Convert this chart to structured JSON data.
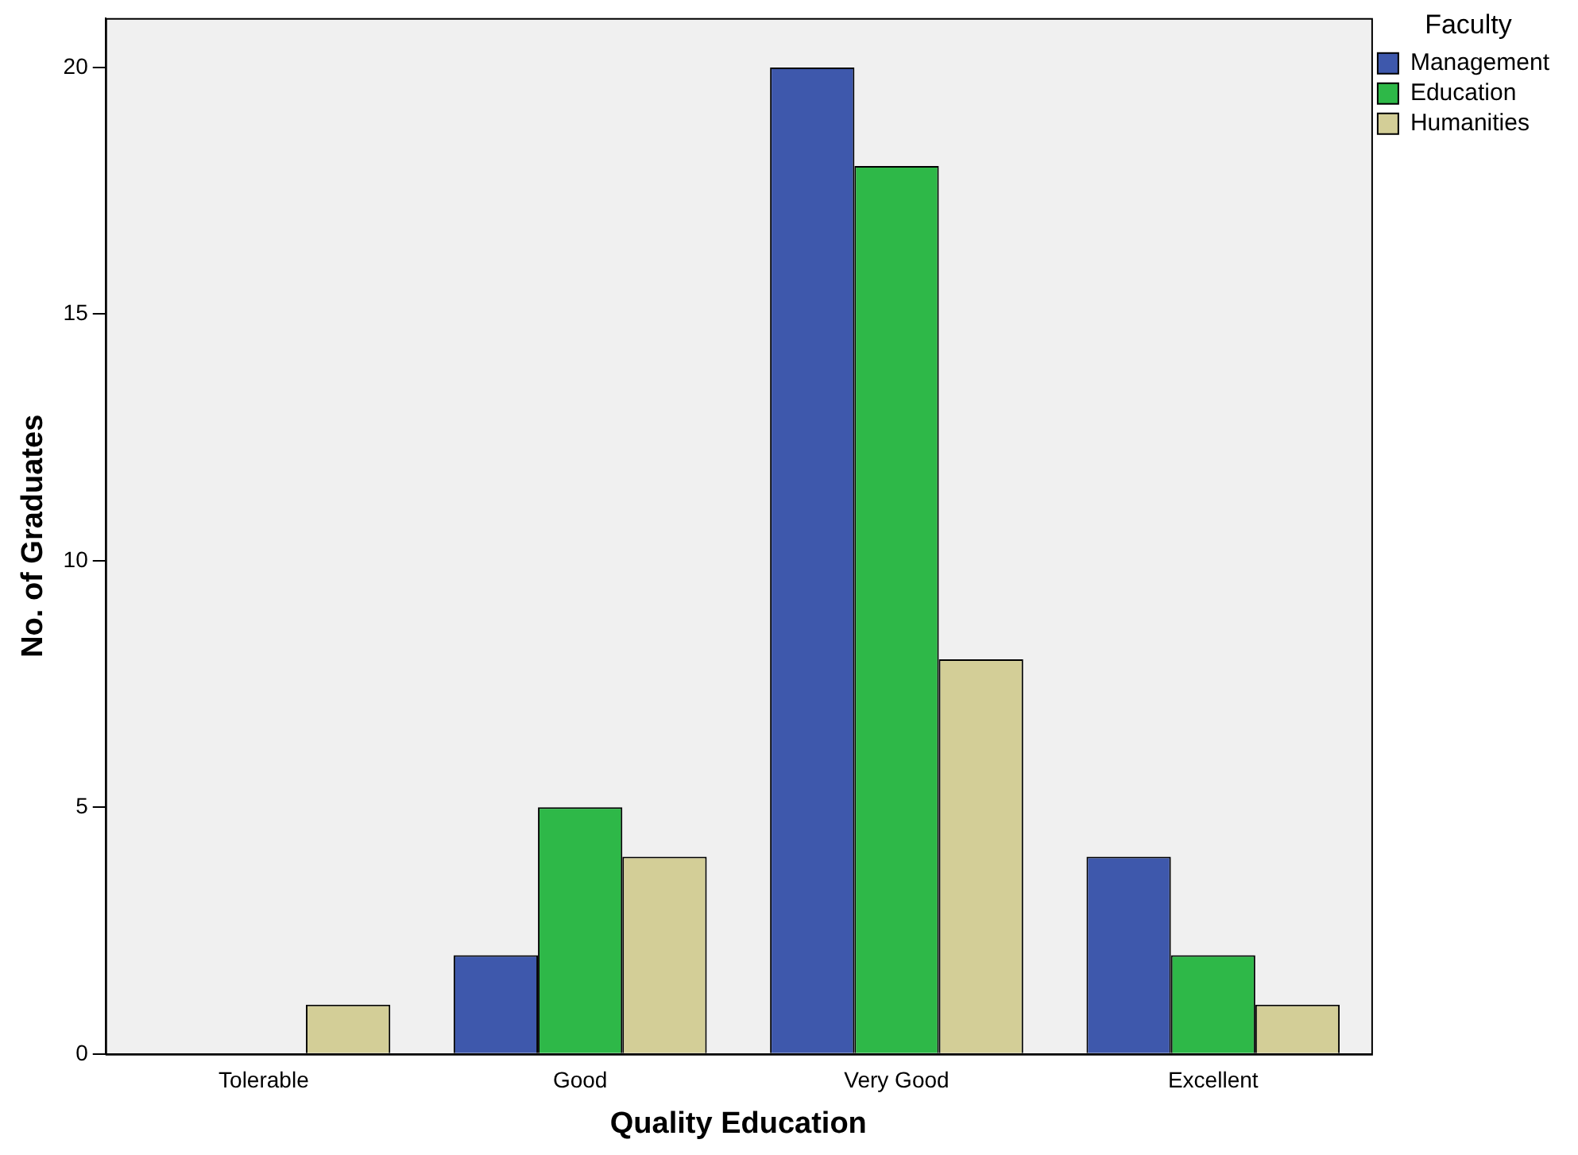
{
  "chart_data": {
    "type": "bar",
    "xlabel": "Quality Education",
    "ylabel": "No. of Graduates",
    "legend_title": "Faculty",
    "categories": [
      "Tolerable",
      "Good",
      "Very Good",
      "Excellent"
    ],
    "series": [
      {
        "name": "Management",
        "color": "#3e58ac",
        "values": [
          0,
          2,
          20,
          4
        ]
      },
      {
        "name": "Education",
        "color": "#2eb848",
        "values": [
          0,
          5,
          18,
          2
        ]
      },
      {
        "name": "Humanities",
        "color": "#d3ce97",
        "values": [
          1,
          4,
          8,
          1
        ]
      }
    ],
    "ylim": [
      0,
      21
    ],
    "yticks": [
      0,
      5,
      10,
      15,
      20
    ],
    "grid": false,
    "legend": "top right"
  }
}
